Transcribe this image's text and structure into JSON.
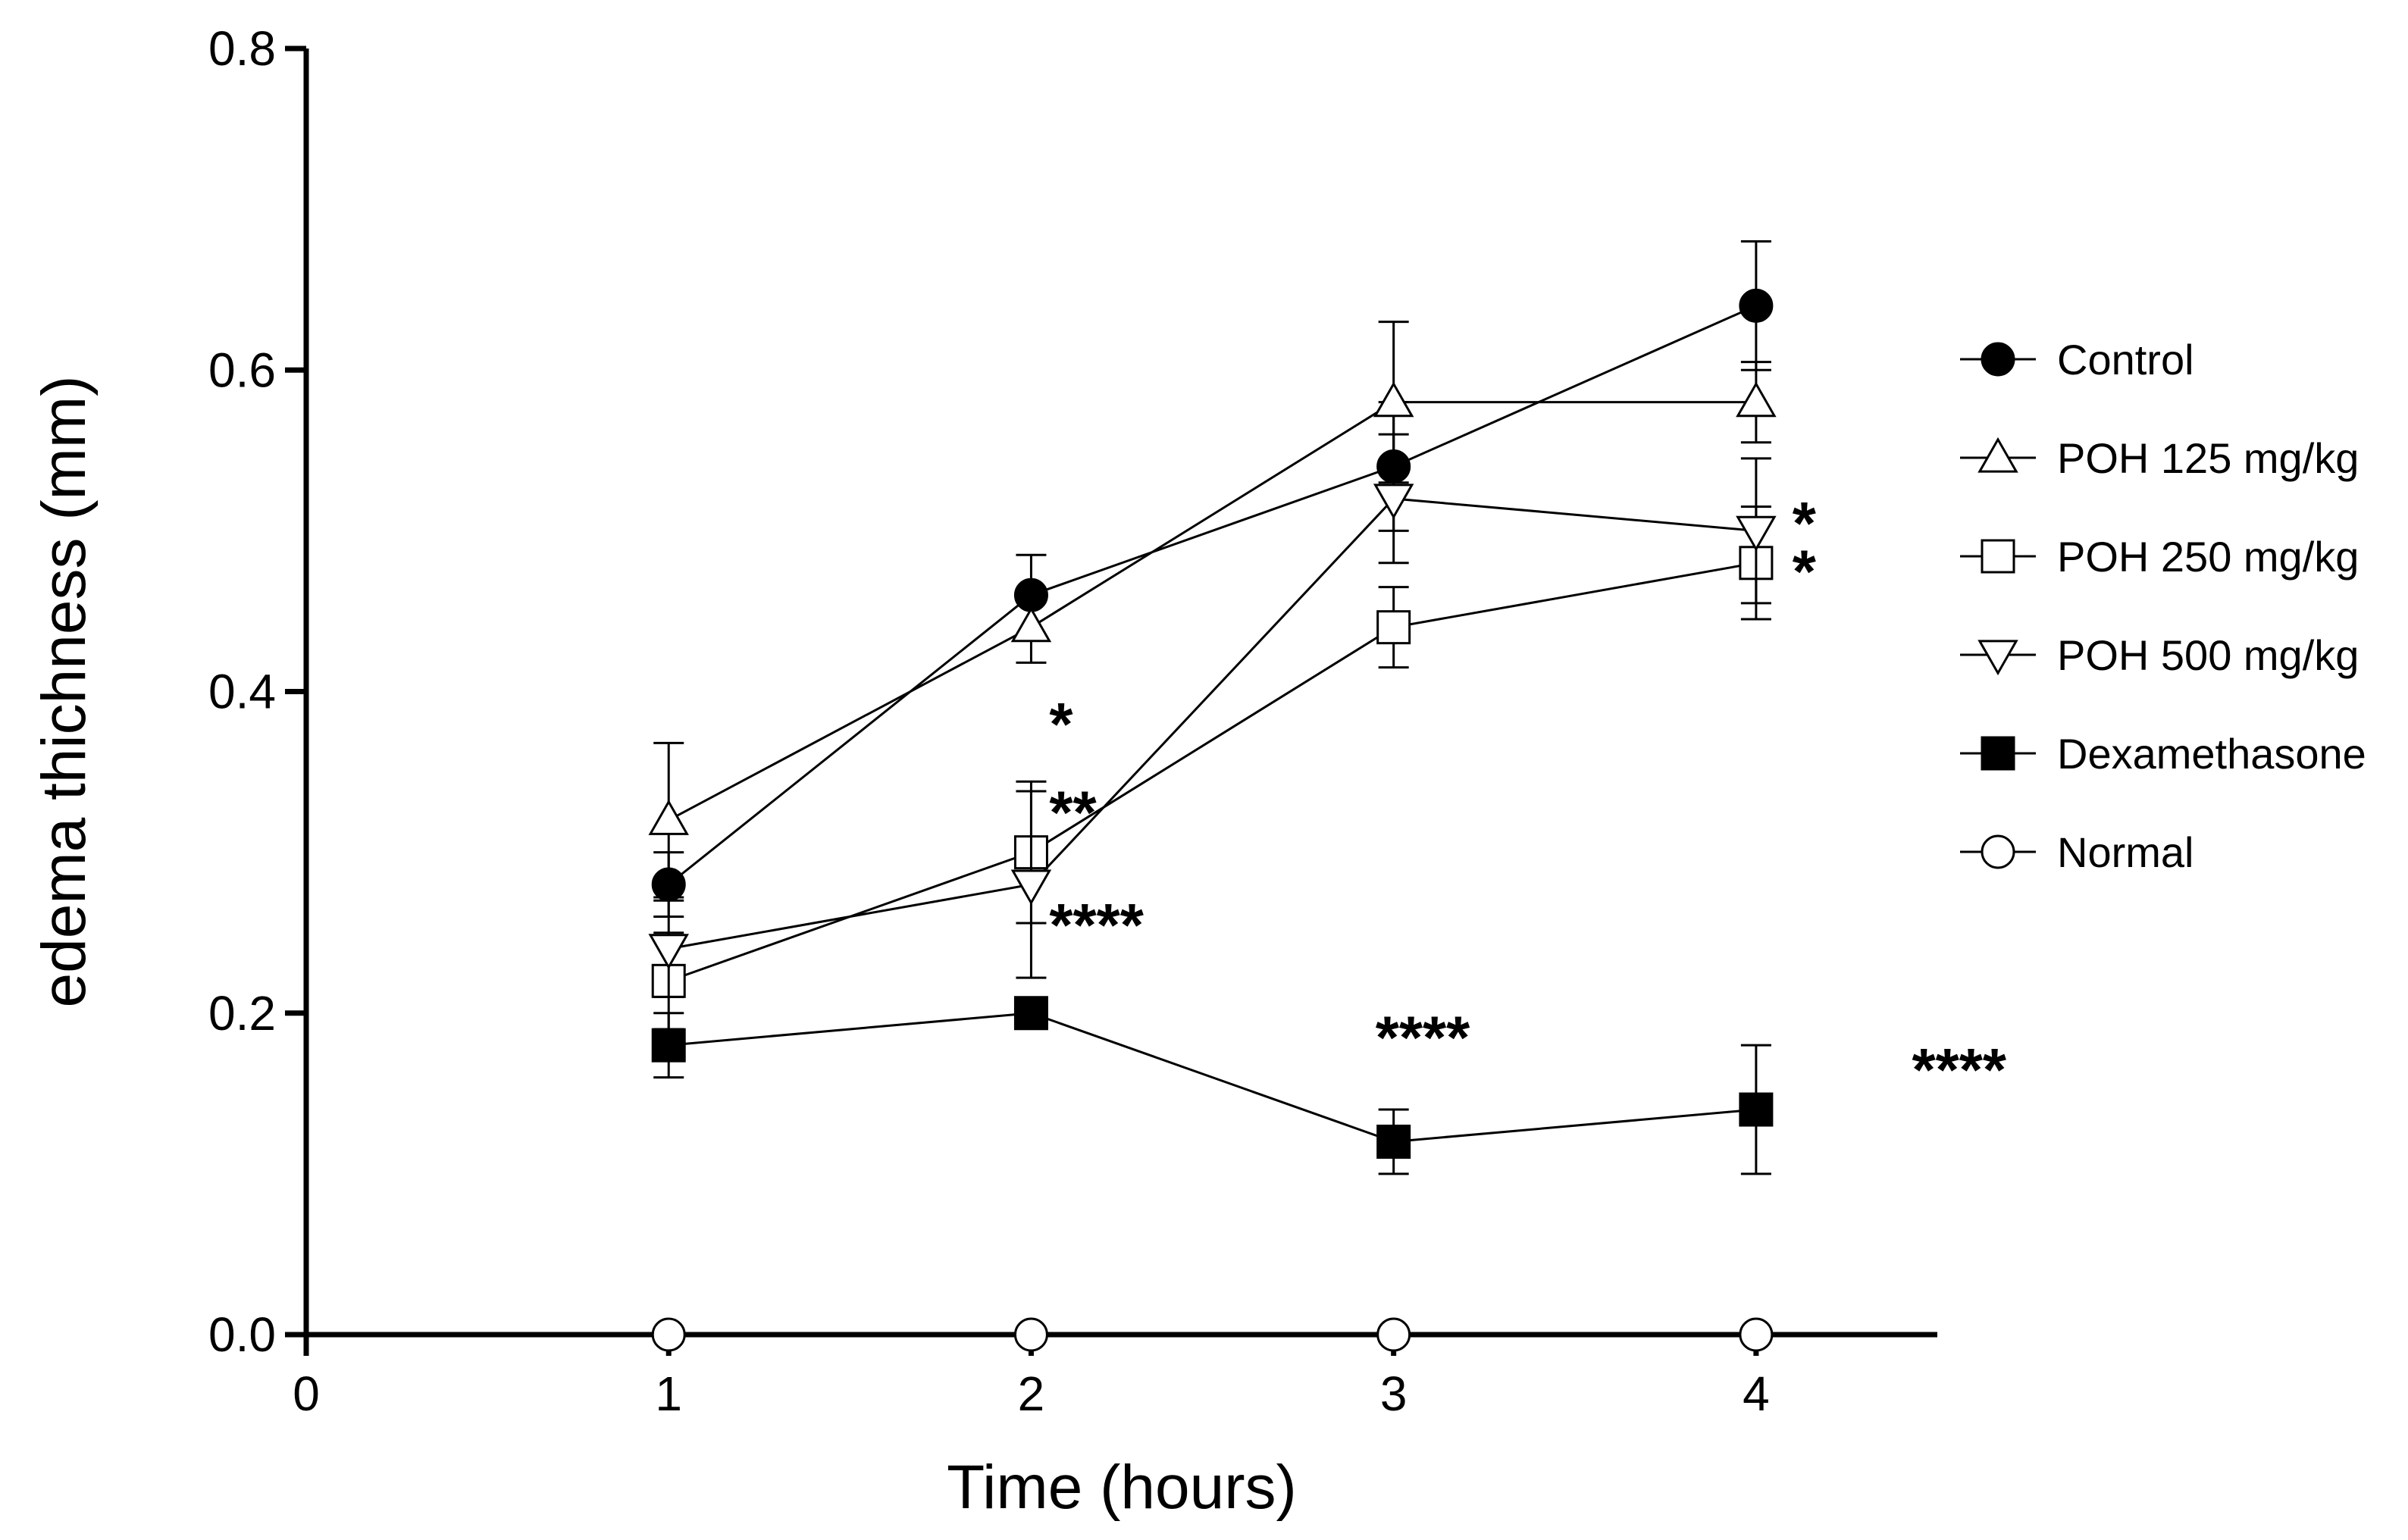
{
  "chart_data": {
    "type": "line",
    "title": "",
    "xlabel": "Time (hours)",
    "ylabel": "edema thichness (mm)",
    "xlim": [
      0,
      4.5
    ],
    "ylim": [
      0,
      0.8
    ],
    "x": [
      1,
      2,
      3,
      4
    ],
    "xticks": [
      "0",
      "1",
      "2",
      "3",
      "4"
    ],
    "yticks": [
      "0.0",
      "0.2",
      "0.4",
      "0.6",
      "0.8"
    ],
    "legend_position": "right",
    "series": [
      {
        "name": "Control",
        "marker": "circle-filled",
        "values": [
          0.28,
          0.46,
          0.54,
          0.64
        ],
        "errors": [
          0.02,
          0.025,
          0.04,
          0.04
        ]
      },
      {
        "name": "POH 125 mg/kg",
        "marker": "triangle-up-open",
        "values": [
          0.32,
          0.44,
          0.58,
          0.58
        ],
        "errors": [
          0.048,
          0.022,
          0.05,
          0.025
        ]
      },
      {
        "name": "POH 250 mg/kg",
        "marker": "square-open",
        "values": [
          0.22,
          0.3,
          0.44,
          0.48
        ],
        "errors": [
          0.03,
          0.044,
          0.025,
          0.035
        ]
      },
      {
        "name": "POH 500 mg/kg",
        "marker": "triangle-down-open",
        "values": [
          0.24,
          0.28,
          0.52,
          0.5
        ],
        "errors": [
          0.03,
          0.058,
          0.04,
          0.045
        ]
      },
      {
        "name": "Dexamethasone",
        "marker": "square-filled",
        "values": [
          0.18,
          0.2,
          0.12,
          0.14
        ],
        "errors": [
          0.02,
          0.005,
          0.02,
          0.04
        ]
      },
      {
        "name": "Normal",
        "marker": "circle-open",
        "values": [
          0,
          0,
          0,
          0
        ],
        "errors": [
          0,
          0,
          0,
          0
        ]
      }
    ],
    "annotations": [
      {
        "text": "*",
        "x": 2.05,
        "y": 0.38
      },
      {
        "text": "**",
        "x": 2.05,
        "y": 0.325
      },
      {
        "text": "****",
        "x": 2.05,
        "y": 0.255
      },
      {
        "text": "****",
        "x": 2.95,
        "y": 0.185
      },
      {
        "text": "*",
        "x": 4.1,
        "y": 0.505
      },
      {
        "text": "*",
        "x": 4.1,
        "y": 0.475
      },
      {
        "text": "****",
        "x": 4.43,
        "y": 0.165
      }
    ]
  }
}
